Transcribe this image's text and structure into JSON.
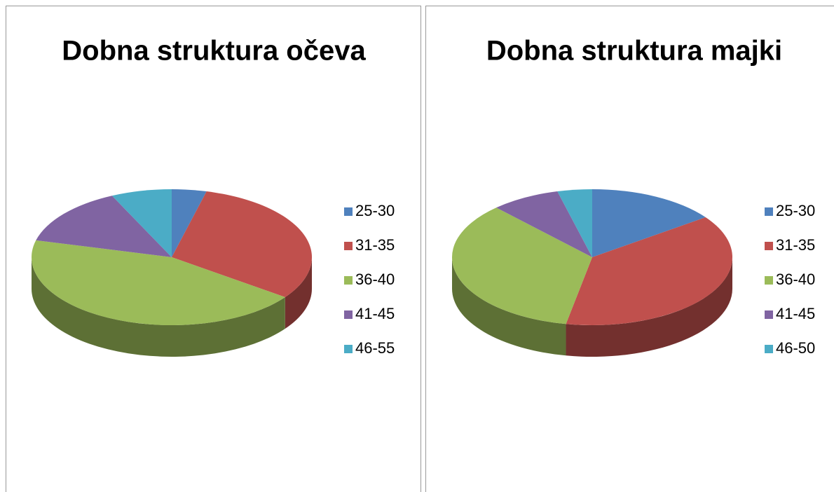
{
  "chart_data": [
    {
      "type": "pie",
      "title": "Dobna struktura očeva",
      "categories": [
        "25-30",
        "31-35",
        "36-40",
        "41-45",
        "46-55"
      ],
      "values": [
        4,
        31,
        44,
        14,
        7
      ],
      "colors": [
        "#4f81bd",
        "#c0504d",
        "#9bbb59",
        "#8064a2",
        "#4bacc6"
      ]
    },
    {
      "type": "pie",
      "title": "Dobna struktura majki",
      "categories": [
        "25-30",
        "31-35",
        "36-40",
        "41-45",
        "46-50"
      ],
      "values": [
        15,
        38,
        35,
        8,
        4
      ],
      "colors": [
        "#4f81bd",
        "#c0504d",
        "#9bbb59",
        "#8064a2",
        "#4bacc6"
      ]
    }
  ]
}
